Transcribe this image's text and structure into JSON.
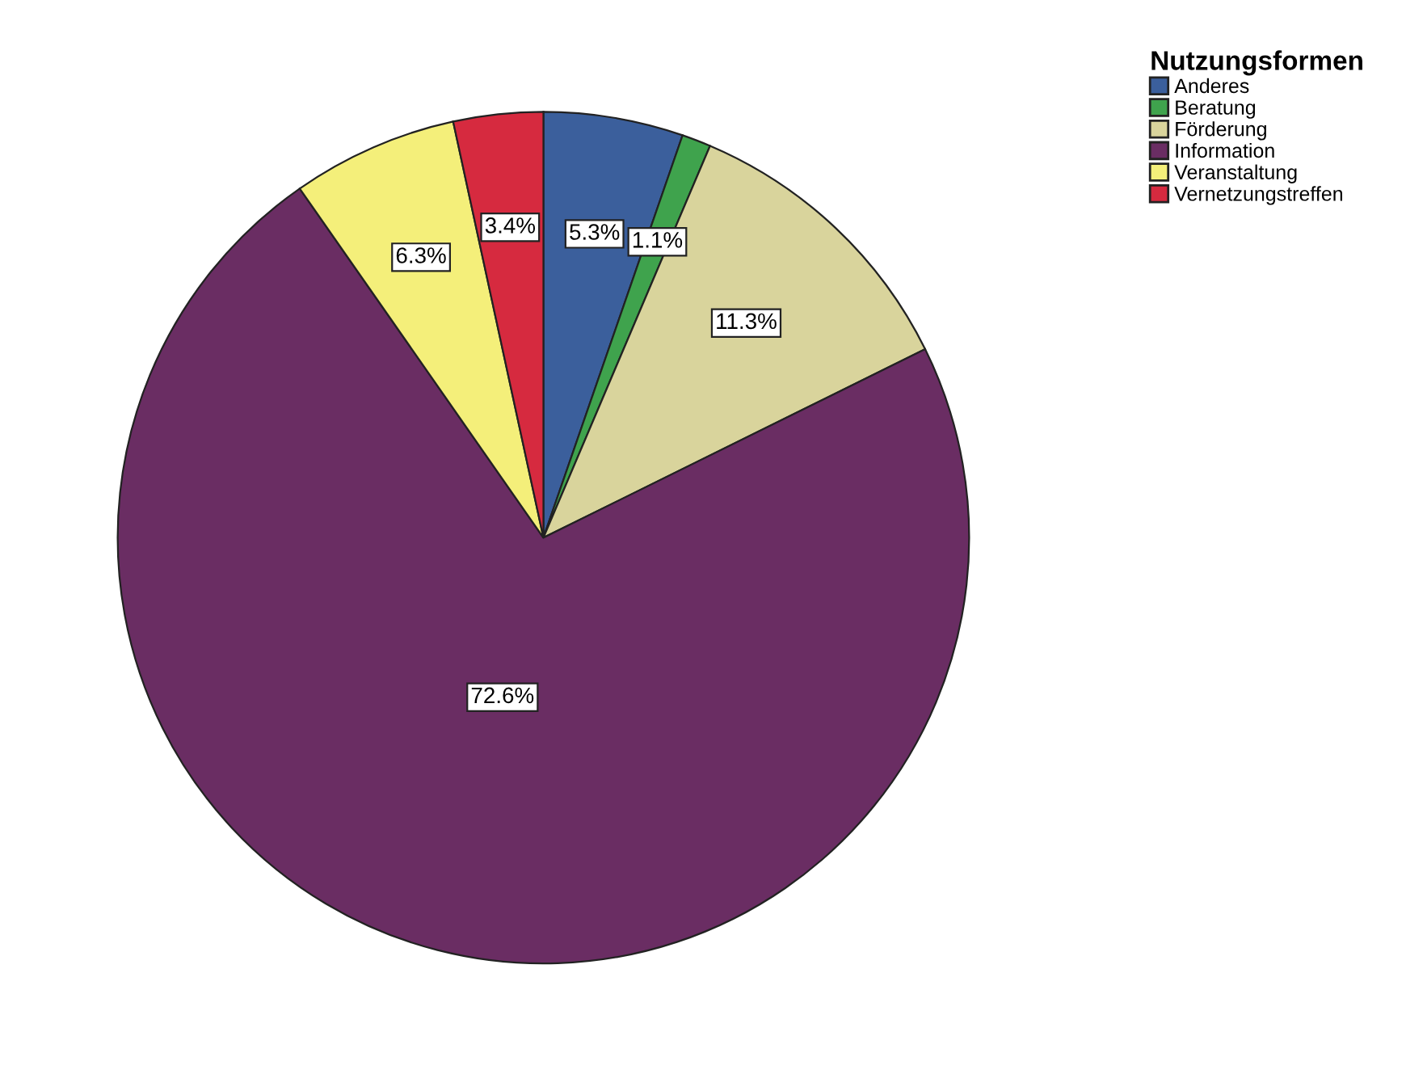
{
  "chart_data": {
    "type": "pie",
    "legend_title": "Nutzungsformen",
    "legend": "top right",
    "categories": [
      "Anderes",
      "Beratung",
      "Förderung",
      "Information",
      "Veranstaltung",
      "Vernetzungstreffen"
    ],
    "values": [
      5.3,
      1.1,
      11.3,
      72.6,
      6.3,
      3.4
    ],
    "value_labels": [
      "5.3%",
      "1.1%",
      "11.3%",
      "72.6%",
      "6.3%",
      "3.4%"
    ],
    "colors": [
      "#3b5f9c",
      "#3fa34d",
      "#d9d49c",
      "#6a2d63",
      "#f4ef7a",
      "#d62a3f"
    ]
  }
}
